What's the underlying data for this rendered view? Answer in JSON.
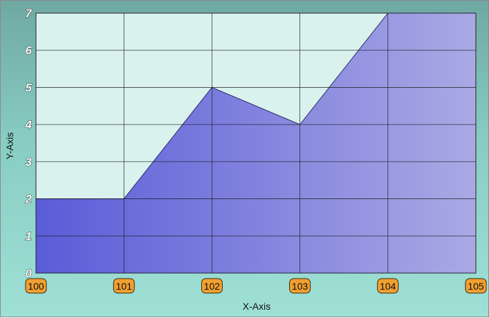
{
  "chart_data": {
    "type": "area",
    "title": "",
    "xlabel": "X-Axis",
    "ylabel": "Y-Axis",
    "x": [
      100,
      101,
      102,
      103,
      104,
      105
    ],
    "y": [
      2,
      2,
      5,
      4,
      7,
      7
    ],
    "x_ticks": [
      "100",
      "101",
      "102",
      "103",
      "104",
      "105"
    ],
    "y_ticks": [
      "0",
      "1",
      "2",
      "3",
      "4",
      "5",
      "6",
      "7"
    ],
    "xlim": [
      100,
      105
    ],
    "ylim": [
      0,
      7
    ],
    "grid": true,
    "legend": "none",
    "colors": {
      "plot_background": "#d9f2ee",
      "area_fill_start": "#5a5cd8",
      "area_fill_end": "#aaa9e4",
      "area_outline": "#2c2c6a",
      "grid": "#1a1a1a",
      "tick_badge": "#f0a030"
    }
  }
}
